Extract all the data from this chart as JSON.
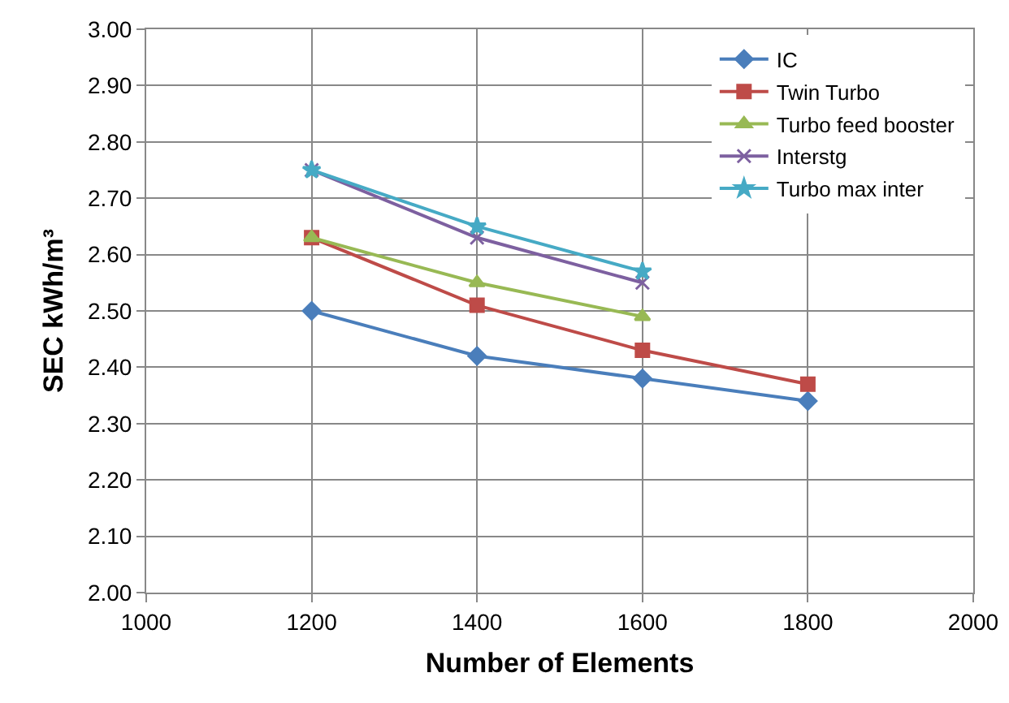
{
  "chart_data": {
    "type": "line",
    "xlabel": "Number of Elements",
    "ylabel": "SEC kWh/m³",
    "x": [
      1200,
      1400,
      1600,
      1800
    ],
    "series": [
      {
        "name": "IC",
        "color": "#4a7ebb",
        "marker": "diamond",
        "values": [
          2.5,
          2.42,
          2.38,
          2.34
        ]
      },
      {
        "name": "Twin Turbo",
        "color": "#be4b48",
        "marker": "square",
        "values": [
          2.63,
          2.51,
          2.43,
          2.37
        ]
      },
      {
        "name": "Turbo feed booster",
        "color": "#98b954",
        "marker": "triangle",
        "values": [
          2.63,
          2.55,
          2.49,
          null
        ]
      },
      {
        "name": "Interstg",
        "color": "#7d60a0",
        "marker": "cross",
        "values": [
          2.75,
          2.63,
          2.55,
          null
        ]
      },
      {
        "name": "Turbo max inter",
        "color": "#46aac5",
        "marker": "star",
        "values": [
          2.75,
          2.65,
          2.57,
          null
        ]
      }
    ],
    "xlim": [
      1000,
      2000
    ],
    "xticks": [
      1000,
      1200,
      1400,
      1600,
      1800,
      2000
    ],
    "ylim": [
      2.0,
      3.0
    ],
    "yticks": [
      {
        "value": 2.0,
        "label": "2.00"
      },
      {
        "value": 2.1,
        "label": "2.10"
      },
      {
        "value": 2.2,
        "label": "2.20"
      },
      {
        "value": 2.3,
        "label": "2.30"
      },
      {
        "value": 2.4,
        "label": "2.40"
      },
      {
        "value": 2.5,
        "label": "2.50"
      },
      {
        "value": 2.6,
        "label": "2.60"
      },
      {
        "value": 2.7,
        "label": "2.70"
      },
      {
        "value": 2.8,
        "label": "2.80"
      },
      {
        "value": 2.9,
        "label": "2.90"
      },
      {
        "value": 3.0,
        "label": "3.00"
      }
    ],
    "grid": true,
    "legend": "top right",
    "line_style": "solid"
  }
}
